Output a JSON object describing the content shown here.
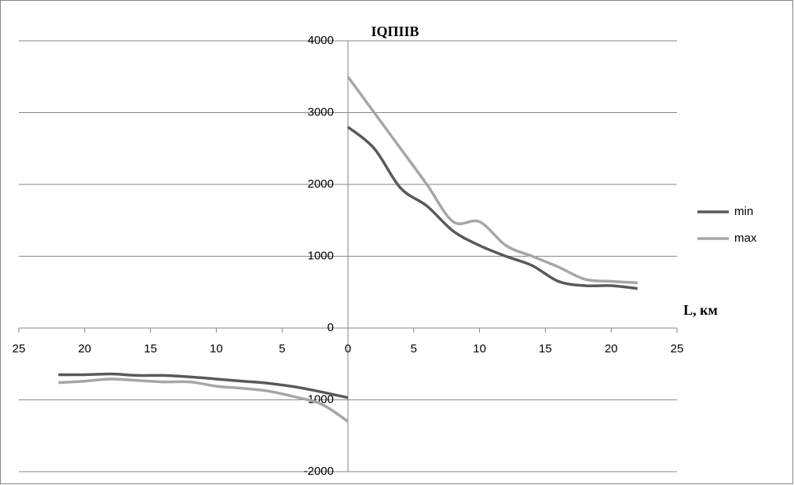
{
  "chart_data": {
    "type": "line",
    "title": "IQПIIB",
    "x_label": "L, км",
    "x": [
      -22,
      -20,
      -18,
      -16,
      -14,
      -12,
      -10,
      -8,
      -6,
      -4,
      -2,
      0,
      null,
      0,
      2,
      4,
      6,
      8,
      10,
      12,
      14,
      16,
      18,
      20,
      22
    ],
    "series": [
      {
        "name": "min",
        "color": "#595959",
        "values": [
          -650,
          -650,
          -640,
          -660,
          -660,
          -680,
          -710,
          -740,
          -770,
          -820,
          -890,
          -970,
          null,
          2800,
          2500,
          1950,
          1700,
          1350,
          1150,
          1000,
          870,
          650,
          590,
          590,
          550
        ]
      },
      {
        "name": "max",
        "color": "#a6a6a6",
        "values": [
          -760,
          -740,
          -710,
          -730,
          -750,
          -750,
          -810,
          -840,
          -880,
          -960,
          -1060,
          -1300,
          null,
          3500,
          3000,
          2500,
          2000,
          1480,
          1480,
          1150,
          1000,
          850,
          680,
          650,
          630
        ]
      }
    ],
    "xlim": [
      -25,
      25
    ],
    "xticks": [
      {
        "value": -25,
        "label": "25"
      },
      {
        "value": -20,
        "label": "20"
      },
      {
        "value": -15,
        "label": "15"
      },
      {
        "value": -10,
        "label": "10"
      },
      {
        "value": -5,
        "label": "5"
      },
      0,
      5,
      10,
      15,
      20,
      25
    ],
    "ylim": [
      -2000,
      4000
    ],
    "yticks": [
      -2000,
      -1000,
      0,
      1000,
      2000,
      3000,
      4000
    ],
    "grid": true,
    "legend": "right"
  }
}
